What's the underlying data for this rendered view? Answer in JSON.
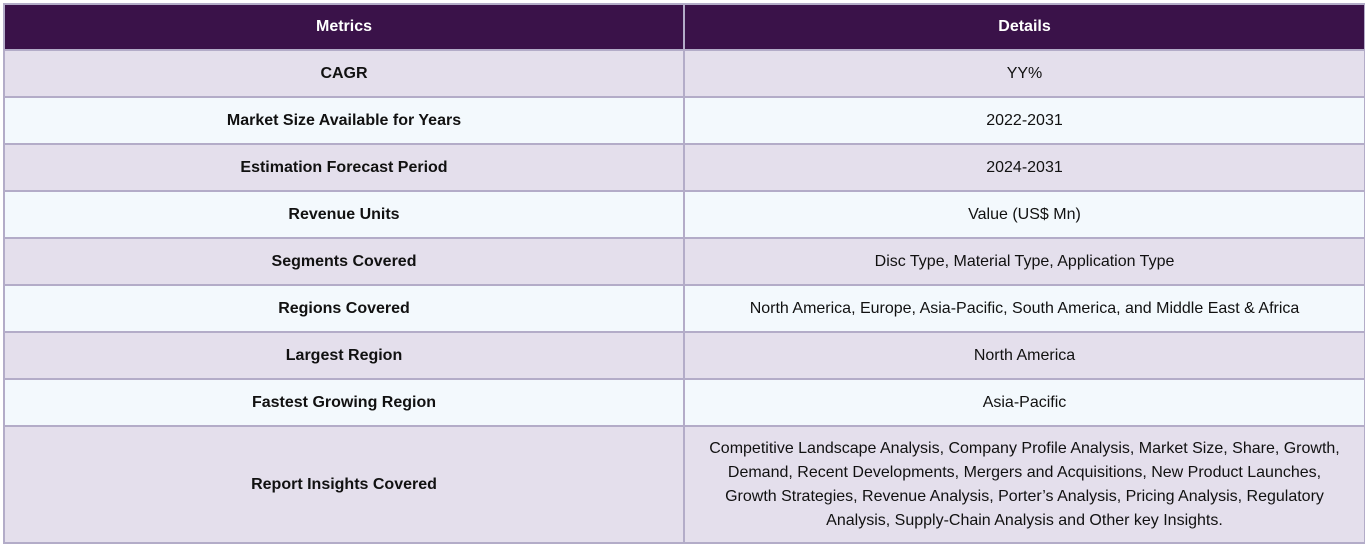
{
  "table": {
    "headers": [
      "Metrics",
      "Details"
    ],
    "rows": [
      {
        "metric": "CAGR",
        "detail": "YY%"
      },
      {
        "metric": "Market Size Available for Years",
        "detail": "2022-2031"
      },
      {
        "metric": "Estimation Forecast Period",
        "detail": "2024-2031"
      },
      {
        "metric": "Revenue Units",
        "detail": "Value (US$ Mn)"
      },
      {
        "metric": "Segments Covered",
        "detail": "Disc Type, Material Type, Application Type"
      },
      {
        "metric": "Regions Covered",
        "detail": "North America, Europe, Asia-Pacific, South America, and Middle East & Africa"
      },
      {
        "metric": "Largest Region",
        "detail": "North America"
      },
      {
        "metric": "Fastest Growing Region",
        "detail": "Asia-Pacific"
      },
      {
        "metric": "Report Insights Covered",
        "detail": "Competitive Landscape Analysis, Company Profile Analysis, Market Size, Share, Growth, Demand, Recent Developments, Mergers and Acquisitions, New Product Launches, Growth Strategies, Revenue Analysis, Porter’s Analysis, Pricing Analysis, Regulatory Analysis, Supply-Chain Analysis and Other key Insights."
      }
    ]
  },
  "colors": {
    "header_bg": "#3a1249",
    "header_text": "#ffffff",
    "row_odd_bg": "#e4dfec",
    "row_even_bg": "#f3f9fd",
    "border": "#b3acc8"
  }
}
